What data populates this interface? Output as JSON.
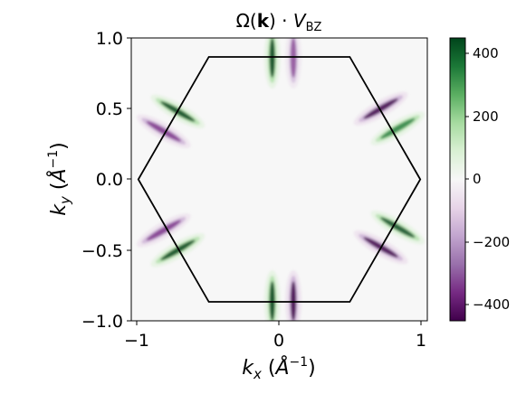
{
  "chart_data": {
    "type": "heatmap",
    "title": "Ω(k) · V_BZ",
    "xlabel": "k_x (Å^-1)",
    "ylabel": "k_y (Å^-1)",
    "xlim": [
      -1.05,
      1.05
    ],
    "ylim": [
      -1.0,
      1.0
    ],
    "x_ticks": [
      {
        "value": -1,
        "label": "−1"
      },
      {
        "value": 0,
        "label": "0"
      },
      {
        "value": 1,
        "label": "1"
      }
    ],
    "y_ticks": [
      {
        "value": 1.0,
        "label": "1.0"
      },
      {
        "value": 0.5,
        "label": "0.5"
      },
      {
        "value": 0.0,
        "label": "0.0"
      },
      {
        "value": -0.5,
        "label": "−0.5"
      },
      {
        "value": -1.0,
        "label": "−1.0"
      }
    ],
    "colorbar": {
      "colormap": "PRGn",
      "range": [
        -450,
        450
      ],
      "ticks": [
        {
          "value": 400,
          "label": "400"
        },
        {
          "value": 200,
          "label": "200"
        },
        {
          "value": 0,
          "label": "0"
        },
        {
          "value": -200,
          "label": "−200"
        },
        {
          "value": -400,
          "label": "−400"
        }
      ],
      "low_color": "#40004b",
      "mid_color": "#f7f7f7",
      "high_color": "#00441b"
    },
    "brillouin_zone": {
      "shape": "hexagon",
      "vertices": [
        [
          1.0,
          0.0
        ],
        [
          0.5,
          0.866
        ],
        [
          -0.5,
          0.866
        ],
        [
          -1.0,
          0.0
        ],
        [
          -0.5,
          -0.866
        ],
        [
          0.5,
          -0.866
        ]
      ],
      "color": "#000000"
    },
    "features": [
      {
        "center": [
          -0.05,
          0.86
        ],
        "angle_deg": 90,
        "sign": "positive",
        "peak": 420
      },
      {
        "center": [
          0.1,
          0.86
        ],
        "angle_deg": 90,
        "sign": "negative",
        "peak": -200
      },
      {
        "center": [
          -0.05,
          -0.86
        ],
        "angle_deg": 90,
        "sign": "positive",
        "peak": 420
      },
      {
        "center": [
          0.1,
          -0.86
        ],
        "angle_deg": 90,
        "sign": "negative",
        "peak": -420
      },
      {
        "center": [
          0.72,
          0.5
        ],
        "angle_deg": 30,
        "sign": "negative",
        "peak": -380
      },
      {
        "center": [
          0.84,
          0.36
        ],
        "angle_deg": 30,
        "sign": "positive",
        "peak": 320
      },
      {
        "center": [
          -0.72,
          0.48
        ],
        "angle_deg": 150,
        "sign": "positive",
        "peak": 380
      },
      {
        "center": [
          -0.82,
          0.34
        ],
        "angle_deg": 150,
        "sign": "negative",
        "peak": -320
      },
      {
        "center": [
          -0.72,
          -0.5
        ],
        "angle_deg": 30,
        "sign": "positive",
        "peak": 380
      },
      {
        "center": [
          -0.82,
          -0.36
        ],
        "angle_deg": 30,
        "sign": "negative",
        "peak": -320
      },
      {
        "center": [
          0.72,
          -0.48
        ],
        "angle_deg": 150,
        "sign": "negative",
        "peak": -380
      },
      {
        "center": [
          0.84,
          -0.34
        ],
        "angle_deg": 150,
        "sign": "positive",
        "peak": 340
      }
    ]
  }
}
